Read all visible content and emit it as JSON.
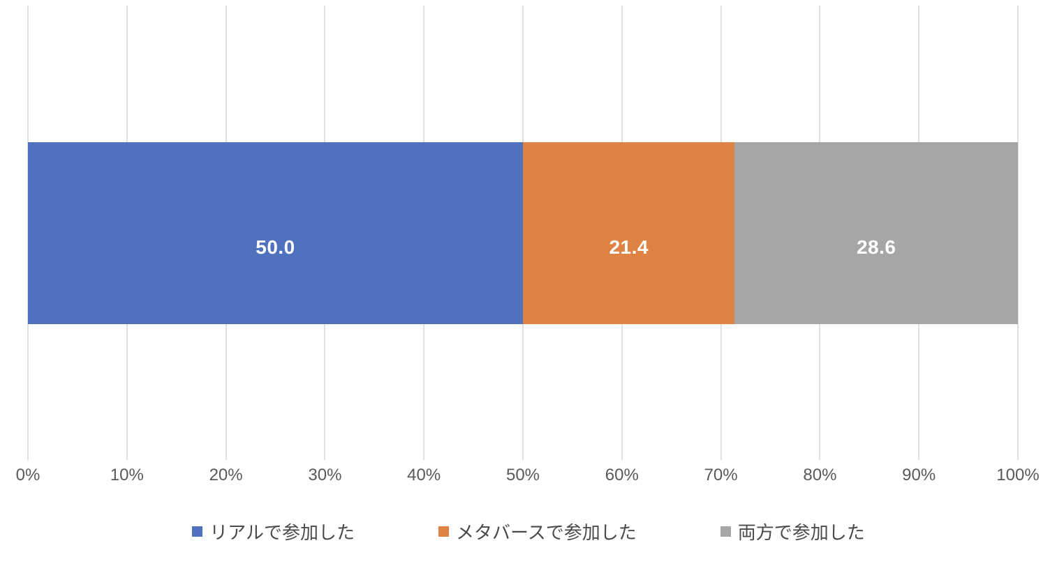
{
  "chart_data": {
    "type": "bar",
    "subtype": "horizontal-stacked",
    "title": "",
    "xlabel": "",
    "ylabel": "",
    "xlim_percent": [
      0,
      100
    ],
    "grid": "vertical-only",
    "legend_position": "bottom-center",
    "x_ticks": [
      "0%",
      "10%",
      "20%",
      "30%",
      "40%",
      "50%",
      "60%",
      "70%",
      "80%",
      "90%",
      "100%"
    ],
    "series": [
      {
        "name": "リアルで参加した",
        "value": 50.0,
        "data_label": "50.0",
        "color": "#4F71BE"
      },
      {
        "name": "メタバースで参加した",
        "value": 21.4,
        "data_label": "21.4",
        "color": "#DE8344"
      },
      {
        "name": "両方で参加した",
        "value": 28.6,
        "data_label": "28.6",
        "color": "#A6A6A6"
      }
    ],
    "legend": [
      {
        "label": "リアルで参加した",
        "color": "#4F71BE"
      },
      {
        "label": "メタバースで参加した",
        "color": "#DE8344"
      },
      {
        "label": "両方で参加した",
        "color": "#A6A6A6"
      }
    ]
  },
  "colors": {
    "background": "#FFFFFF",
    "gridline": "#E0E0E0",
    "axis_text": "#595959",
    "legend_text": "#4A4A4A",
    "data_label_text": "#FFFFFF"
  }
}
